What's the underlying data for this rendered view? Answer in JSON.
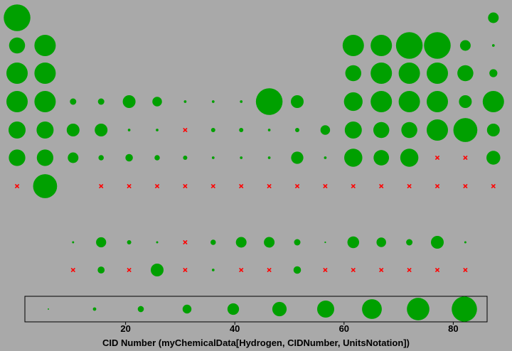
{
  "chart_data": {
    "type": "scatter",
    "title": "",
    "xlabel": "CID Number (myChemicalData[Hydrogen, CIDNumber, UnitsNotation])",
    "ylabel": "",
    "xlim": [
      0,
      88.5
    ],
    "x_ticks": [
      20,
      40,
      60,
      80
    ],
    "grid": false,
    "legend": "bottom",
    "marker_colors": {
      "bubble": "#00a000",
      "missing": "#ff0000"
    },
    "columns": 18,
    "rows": [
      "period-1",
      "period-2",
      "period-3",
      "period-4",
      "period-5",
      "period-6",
      "period-7",
      "lanthanides",
      "actinides"
    ],
    "cells": [
      [
        5,
        null,
        null,
        null,
        null,
        null,
        null,
        null,
        null,
        null,
        null,
        null,
        null,
        null,
        null,
        null,
        null,
        2
      ],
      [
        3,
        4,
        null,
        null,
        null,
        null,
        null,
        null,
        null,
        null,
        null,
        null,
        4,
        4,
        5,
        5,
        2,
        0.5
      ],
      [
        4,
        4,
        null,
        null,
        null,
        null,
        null,
        null,
        null,
        null,
        null,
        null,
        3,
        4,
        4,
        4,
        3,
        1.5
      ],
      [
        4,
        4,
        1.2,
        1.2,
        2.4,
        1.8,
        0.5,
        0.5,
        0.5,
        5,
        2.4,
        null,
        3.5,
        4,
        4,
        4,
        2.4,
        4
      ],
      [
        3.2,
        3.2,
        2.4,
        2.4,
        0.5,
        0.5,
        0,
        0.8,
        0.8,
        0.5,
        0.8,
        1.8,
        3.2,
        3,
        3,
        4,
        4.5,
        2.4
      ],
      [
        3.1,
        3.1,
        2,
        1,
        1.4,
        1,
        0.8,
        0.5,
        0.5,
        0.5,
        2.3,
        0.5,
        3.4,
        2.9,
        3.4,
        0,
        0,
        2.6
      ],
      [
        0,
        4.5,
        null,
        0,
        0,
        0,
        0,
        0,
        0,
        0,
        0,
        0,
        0,
        0,
        0,
        0,
        0,
        0
      ],
      [
        null,
        null,
        0.4,
        1.9,
        0.8,
        0.4,
        0,
        1.0,
        2.0,
        2.0,
        1.2,
        0.3,
        2.2,
        1.8,
        1.2,
        2.4,
        0.4,
        null
      ],
      [
        null,
        null,
        0,
        1.3,
        0,
        2.4,
        0,
        0.5,
        0,
        0,
        1.4,
        0,
        0,
        0,
        0,
        0,
        0,
        null
      ]
    ],
    "legend_scale": [
      0.4,
      1.0,
      1.8,
      2.6,
      3.4,
      4.2,
      5.0,
      5.8,
      6.6,
      7.4
    ]
  }
}
